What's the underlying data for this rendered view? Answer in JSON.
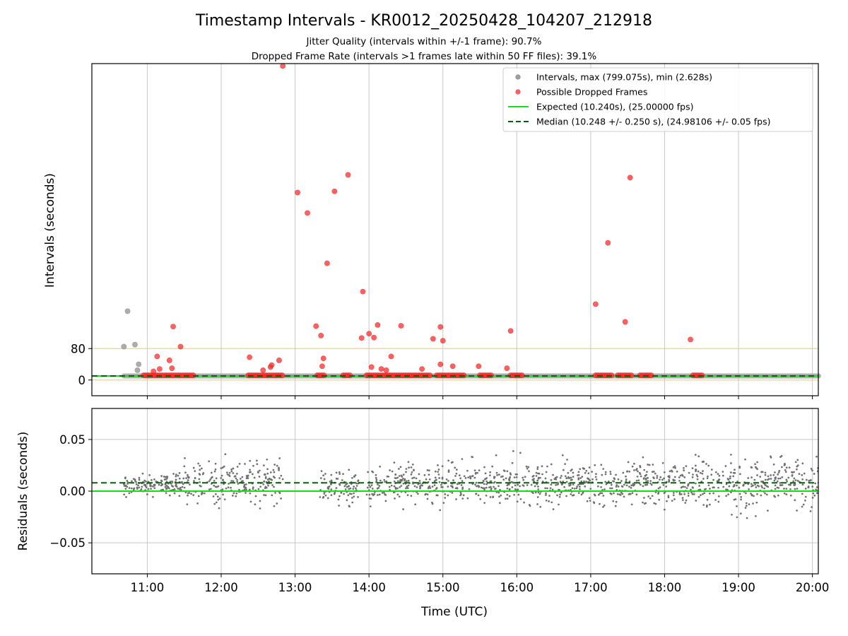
{
  "figure": {
    "title": "Timestamp Intervals - KR0012_20250428_104207_212918",
    "subtitle1": "Jitter Quality (intervals within +/-1 frame): 90.7%",
    "subtitle2": "Dropped Frame Rate (intervals >1 frames late within 50 FF files): 39.1%"
  },
  "colors": {
    "intervals": "#9e9e9e",
    "dropped": "#ff2b2b",
    "expected": "#12e012",
    "median": "#006400",
    "threshold": "#ffc83c",
    "residuals": "#6e6e6e",
    "grid": "#c8c8c8"
  },
  "chart_data": [
    {
      "type": "scatter",
      "ylabel": "Intervals (seconds)",
      "ylim": [
        -40,
        805
      ],
      "yticks": [
        "0",
        "80"
      ],
      "ytick_values": [
        0,
        80
      ],
      "xlim_hours": [
        10.25,
        20.08
      ],
      "xticks": [
        "11:00",
        "12:00",
        "13:00",
        "14:00",
        "15:00",
        "16:00",
        "17:00",
        "18:00",
        "19:00",
        "20:00"
      ],
      "xtick_values": [
        11,
        12,
        13,
        14,
        15,
        16,
        17,
        18,
        19,
        20
      ],
      "grid": "vertical",
      "legend_position": "top-right",
      "legend": [
        "Intervals, max (799.075s), min (2.628s)",
        "Possible Dropped Frames",
        "Expected (10.240s), (25.00000 fps)",
        "Median (10.248 +/- 0.250 s), (24.98106 +/- 0.05 fps)"
      ],
      "expected_value": 10.24,
      "median_value": 10.248,
      "threshold_values": [
        0,
        80
      ],
      "intervals_outliers": [
        {
          "x": "10:44",
          "y": 175
        },
        {
          "x": "10:41",
          "y": 85
        },
        {
          "x": "10:50",
          "y": 90
        },
        {
          "x": "10:53",
          "y": 40
        },
        {
          "x": "10:52",
          "y": 25
        }
      ],
      "intervals_baseline": {
        "from": "10:41",
        "to": "20:05",
        "y": 10.25
      },
      "dropped_frames": [
        {
          "x": "12:50",
          "y": 799
        },
        {
          "x": "13:02",
          "y": 477
        },
        {
          "x": "13:10",
          "y": 425
        },
        {
          "x": "13:32",
          "y": 480
        },
        {
          "x": "13:43",
          "y": 522
        },
        {
          "x": "17:32",
          "y": 515
        },
        {
          "x": "17:14",
          "y": 349
        },
        {
          "x": "13:26",
          "y": 297
        },
        {
          "x": "13:55",
          "y": 225
        },
        {
          "x": "17:04",
          "y": 193
        },
        {
          "x": "17:28",
          "y": 148
        },
        {
          "x": "11:21",
          "y": 136
        },
        {
          "x": "11:27",
          "y": 85
        },
        {
          "x": "13:17",
          "y": 137
        },
        {
          "x": "13:21",
          "y": 113
        },
        {
          "x": "13:54",
          "y": 107
        },
        {
          "x": "14:00",
          "y": 118
        },
        {
          "x": "14:04",
          "y": 108
        },
        {
          "x": "14:07",
          "y": 140
        },
        {
          "x": "14:26",
          "y": 138
        },
        {
          "x": "14:52",
          "y": 105
        },
        {
          "x": "14:58",
          "y": 135
        },
        {
          "x": "15:00",
          "y": 100
        },
        {
          "x": "15:55",
          "y": 125
        },
        {
          "x": "18:21",
          "y": 103
        },
        {
          "x": "11:08",
          "y": 60
        },
        {
          "x": "12:23",
          "y": 58
        },
        {
          "x": "12:47",
          "y": 50
        },
        {
          "x": "13:23",
          "y": 55
        },
        {
          "x": "14:18",
          "y": 60
        },
        {
          "x": "11:18",
          "y": 50
        },
        {
          "x": "13:22",
          "y": 35
        },
        {
          "x": "14:58",
          "y": 40
        },
        {
          "x": "15:08",
          "y": 35
        },
        {
          "x": "15:29",
          "y": 35
        },
        {
          "x": "15:52",
          "y": 30
        },
        {
          "x": "12:40",
          "y": 33
        },
        {
          "x": "12:41",
          "y": 38
        },
        {
          "x": "11:10",
          "y": 28
        },
        {
          "x": "11:20",
          "y": 30
        },
        {
          "x": "11:05",
          "y": 22
        },
        {
          "x": "14:43",
          "y": 28
        },
        {
          "x": "14:02",
          "y": 33
        },
        {
          "x": "14:10",
          "y": 28
        },
        {
          "x": "14:14",
          "y": 25
        },
        {
          "x": "12:34",
          "y": 25
        }
      ],
      "dropped_clusters": [
        {
          "from": "10:57",
          "to": "11:38",
          "y": 12
        },
        {
          "from": "12:22",
          "to": "12:50",
          "y": 12
        },
        {
          "from": "13:18",
          "to": "13:25",
          "y": 12
        },
        {
          "from": "13:39",
          "to": "13:46",
          "y": 12
        },
        {
          "from": "13:58",
          "to": "14:50",
          "y": 12
        },
        {
          "from": "14:55",
          "to": "15:18",
          "y": 12
        },
        {
          "from": "15:30",
          "to": "15:40",
          "y": 12
        },
        {
          "from": "15:55",
          "to": "16:06",
          "y": 12
        },
        {
          "from": "17:04",
          "to": "17:18",
          "y": 12
        },
        {
          "from": "17:22",
          "to": "17:34",
          "y": 12
        },
        {
          "from": "17:40",
          "to": "17:50",
          "y": 12
        },
        {
          "from": "18:23",
          "to": "18:32",
          "y": 12
        }
      ]
    },
    {
      "type": "scatter",
      "xlabel": "Time (UTC)",
      "ylabel": "Residuals (seconds)",
      "ylim": [
        -0.08,
        0.08
      ],
      "yticks": [
        "0.05",
        "0.00",
        "−0.05"
      ],
      "ytick_values": [
        0.05,
        0.0,
        -0.05
      ],
      "xlim_hours": [
        10.25,
        20.08
      ],
      "xticks": [
        "11:00",
        "12:00",
        "13:00",
        "14:00",
        "15:00",
        "16:00",
        "17:00",
        "18:00",
        "19:00",
        "20:00"
      ],
      "xtick_values": [
        11,
        12,
        13,
        14,
        15,
        16,
        17,
        18,
        19,
        20
      ],
      "grid": "both",
      "expected_value": 0.0,
      "median_value": 0.008,
      "residual_bands": [
        {
          "from": "10:41",
          "to": "11:30",
          "center": 0.006,
          "spread": 0.012
        },
        {
          "from": "11:30",
          "to": "12:50",
          "center": 0.008,
          "spread": 0.028
        },
        {
          "from": "13:20",
          "to": "13:52",
          "center": 0.005,
          "spread": 0.022
        },
        {
          "from": "13:58",
          "to": "15:20",
          "center": 0.007,
          "spread": 0.026
        },
        {
          "from": "15:20",
          "to": "17:40",
          "center": 0.007,
          "spread": 0.028
        },
        {
          "from": "17:40",
          "to": "20:05",
          "center": 0.008,
          "spread": 0.034
        }
      ]
    }
  ]
}
